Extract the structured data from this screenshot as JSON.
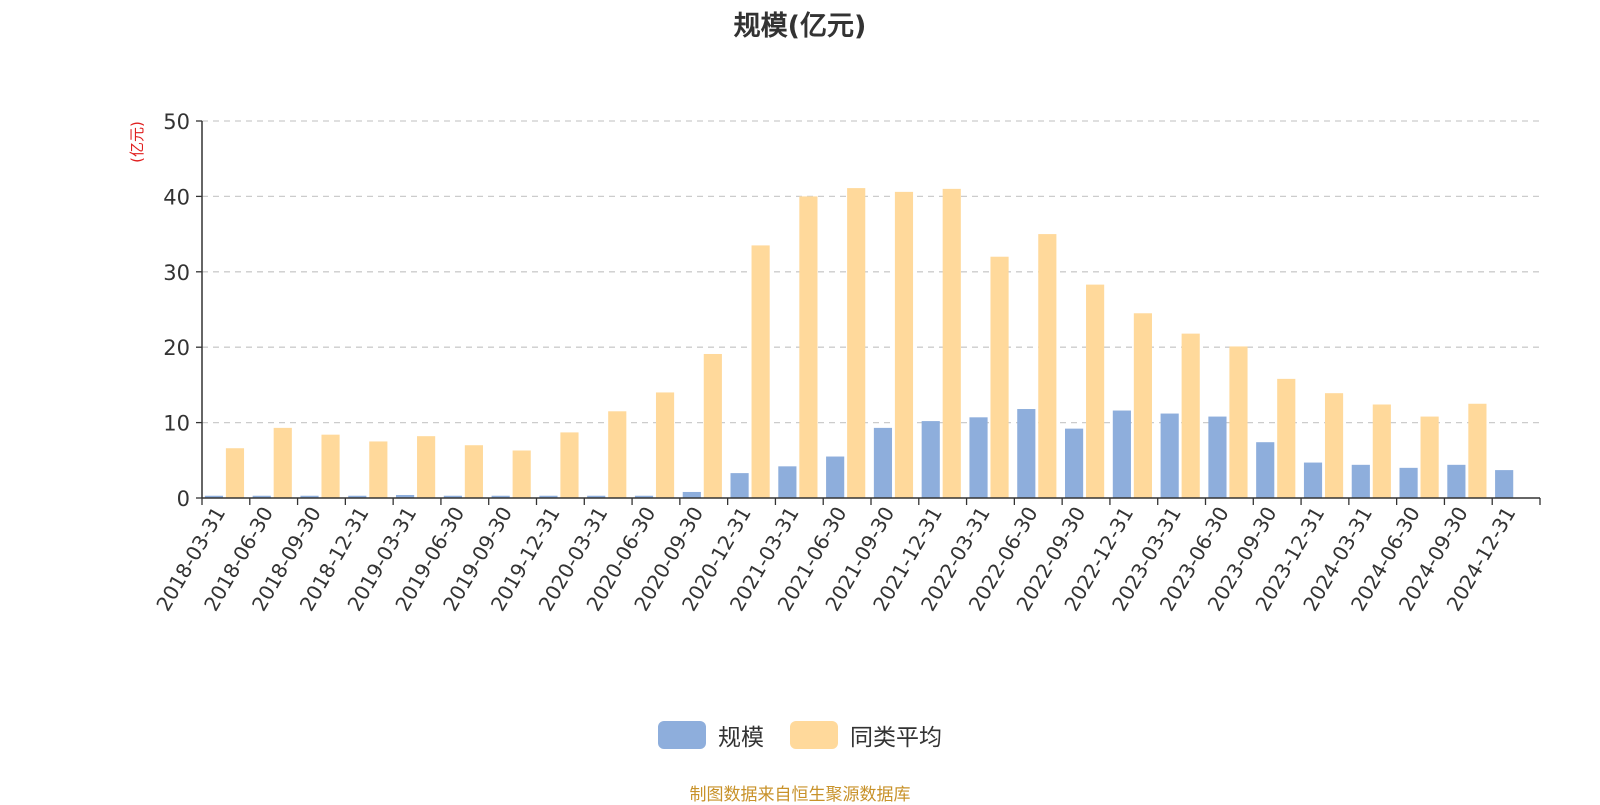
{
  "chart_data": {
    "type": "bar",
    "title": "规模(亿元)",
    "ylabel": "(亿元)",
    "ylim": [
      0,
      50
    ],
    "yticks": [
      0,
      10,
      20,
      30,
      40,
      50
    ],
    "grid": true,
    "legend_position": "bottom",
    "categories": [
      "2018-03-31",
      "2018-06-30",
      "2018-09-30",
      "2018-12-31",
      "2019-03-31",
      "2019-06-30",
      "2019-09-30",
      "2019-12-31",
      "2020-03-31",
      "2020-06-30",
      "2020-09-30",
      "2020-12-31",
      "2021-03-31",
      "2021-06-30",
      "2021-09-30",
      "2021-12-31",
      "2022-03-31",
      "2022-06-30",
      "2022-09-30",
      "2022-12-31",
      "2023-03-31",
      "2023-06-30",
      "2023-09-30",
      "2023-12-31",
      "2024-03-31",
      "2024-06-30",
      "2024-09-30",
      "2024-12-31"
    ],
    "series": [
      {
        "name": "规模",
        "color": "#8eaedc",
        "values": [
          0.3,
          0.3,
          0.3,
          0.3,
          0.4,
          0.3,
          0.3,
          0.3,
          0.3,
          0.3,
          0.8,
          3.3,
          4.2,
          5.5,
          9.3,
          10.2,
          10.7,
          11.8,
          9.2,
          11.6,
          11.2,
          10.8,
          7.4,
          4.7,
          4.4,
          4.0,
          4.4,
          3.7
        ]
      },
      {
        "name": "同类平均",
        "color": "#ffd99b",
        "values": [
          6.6,
          9.3,
          8.4,
          7.5,
          8.2,
          7.0,
          6.3,
          8.7,
          11.5,
          14.0,
          19.1,
          33.5,
          40.0,
          41.1,
          40.6,
          41.0,
          32.0,
          35.0,
          28.3,
          24.5,
          21.8,
          20.1,
          15.8,
          13.9,
          12.4,
          10.8,
          12.5,
          null
        ]
      }
    ]
  },
  "source_note": "制图数据来自恒生聚源数据库"
}
